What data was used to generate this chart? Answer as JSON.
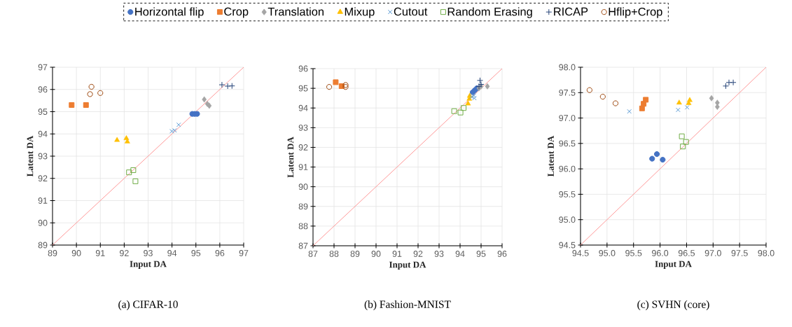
{
  "chart_data": [
    {
      "type": "scatter",
      "title": "(a) CIFAR-10",
      "xlabel": "Input DA",
      "ylabel": "Latent DA",
      "xlim": [
        89,
        97
      ],
      "ylim": [
        89,
        97
      ],
      "xticks": [
        89,
        90,
        91,
        92,
        93,
        94,
        95,
        96,
        97
      ],
      "yticks": [
        89,
        90,
        91,
        92,
        93,
        94,
        95,
        96,
        97
      ],
      "grid": true,
      "legend": "top",
      "series": [
        {
          "type": "line",
          "color": "#ff9999",
          "marker": "none",
          "x": [
            89,
            97
          ],
          "values": [
            89,
            97
          ]
        },
        {
          "name": "Horizontal flip",
          "color": "#4472c4",
          "marker": "circle",
          "x": [
            94.85,
            94.95,
            95.05
          ],
          "values": [
            94.9,
            94.9,
            94.9
          ]
        },
        {
          "name": "Crop",
          "color": "#ed7d31",
          "marker": "square",
          "x": [
            89.8,
            90.4
          ],
          "values": [
            95.3,
            95.3
          ]
        },
        {
          "name": "Translation",
          "color": "#a5a5a5",
          "marker": "diamond",
          "x": [
            95.35,
            95.48,
            95.56
          ],
          "values": [
            95.55,
            95.35,
            95.27
          ]
        },
        {
          "name": "Mixup",
          "color": "#ffc000",
          "marker": "triangle",
          "x": [
            91.7,
            92.09,
            92.13
          ],
          "values": [
            93.72,
            93.8,
            93.65
          ]
        },
        {
          "name": "Cutout",
          "color": "#5b9bd5",
          "marker": "cross",
          "x": [
            93.99,
            94.11,
            94.28
          ],
          "values": [
            94.12,
            94.16,
            94.41
          ]
        },
        {
          "name": "Random Erasing",
          "color": "#70ad47",
          "marker": "square",
          "x": [
            92.2,
            92.38,
            92.47
          ],
          "values": [
            92.27,
            92.37,
            91.87
          ]
        },
        {
          "name": "RICAP",
          "color": "#264478",
          "marker": "cross",
          "x": [
            96.09,
            96.33,
            96.51
          ],
          "values": [
            96.21,
            96.15,
            96.16
          ]
        },
        {
          "name": "Hflip+Crop",
          "color": "#9e480e",
          "marker": "circle",
          "x": [
            90.63,
            90.57,
            91.0
          ],
          "values": [
            96.12,
            95.79,
            95.84
          ]
        }
      ]
    },
    {
      "type": "scatter",
      "title": "(b) Fashion-MNIST",
      "xlabel": "Input DA",
      "ylabel": "Latent DA",
      "xlim": [
        87,
        96
      ],
      "ylim": [
        87,
        96
      ],
      "xticks": [
        87,
        88,
        89,
        90,
        91,
        92,
        93,
        94,
        95,
        96
      ],
      "yticks": [
        87,
        88,
        89,
        90,
        91,
        92,
        93,
        94,
        95,
        96
      ],
      "grid": true,
      "series": [
        {
          "type": "line",
          "color": "#ff9999",
          "marker": "none",
          "x": [
            87,
            96
          ],
          "values": [
            87,
            96
          ]
        },
        {
          "color": "#4472c4",
          "marker": "circle",
          "x": [
            94.6,
            94.7,
            94.8
          ],
          "values": [
            94.8,
            94.9,
            95.0
          ]
        },
        {
          "color": "#ed7d31",
          "marker": "square",
          "x": [
            88.08,
            88.36
          ],
          "values": [
            95.31,
            95.11
          ]
        },
        {
          "color": "#a5a5a5",
          "marker": "diamond",
          "x": [
            94.9,
            95.0,
            95.3
          ],
          "values": [
            95.0,
            95.1,
            95.1
          ]
        },
        {
          "color": "#ffc000",
          "marker": "triangle",
          "x": [
            94.38,
            94.44,
            94.46
          ],
          "values": [
            94.22,
            94.46,
            94.61
          ]
        },
        {
          "color": "#5b9bd5",
          "marker": "cross",
          "x": [
            94.55,
            94.66,
            94.68
          ],
          "values": [
            94.57,
            94.63,
            94.5
          ]
        },
        {
          "color": "#70ad47",
          "marker": "square",
          "x": [
            93.72,
            94.02,
            94.17
          ],
          "values": [
            93.84,
            93.77,
            94.0
          ]
        },
        {
          "color": "#264478",
          "marker": "cross",
          "x": [
            94.95,
            95.0,
            94.9
          ],
          "values": [
            95.4,
            95.2,
            95.1
          ]
        },
        {
          "color": "#9e480e",
          "marker": "circle",
          "x": [
            87.77,
            88.55,
            88.55
          ],
          "values": [
            95.07,
            95.17,
            95.07
          ]
        }
      ]
    },
    {
      "type": "scatter",
      "title": "(c) SVHN (core)",
      "xlabel": "Input DA",
      "ylabel": "Latent DA",
      "xlim": [
        94.5,
        98
      ],
      "ylim": [
        94.5,
        98
      ],
      "xticks": [
        94.5,
        {
          "value": 95,
          "label": "95.0"
        },
        95.5,
        {
          "value": 96,
          "label": "96.0"
        },
        96.5,
        {
          "value": 97,
          "label": "97.0"
        },
        97.5,
        {
          "value": 98,
          "label": "98.0"
        }
      ],
      "yticks": [
        94.5,
        {
          "value": 95,
          "label": "95.0"
        },
        95.5,
        {
          "value": 96,
          "label": "96.0"
        },
        96.5,
        {
          "value": 97,
          "label": "97.0"
        },
        97.5,
        {
          "value": 98,
          "label": "98.0"
        }
      ],
      "grid": true,
      "series": [
        {
          "type": "line",
          "color": "#ff9999",
          "marker": "none",
          "x": [
            94.5,
            98
          ],
          "values": [
            94.5,
            98
          ]
        },
        {
          "color": "#4472c4",
          "marker": "circle",
          "x": [
            95.85,
            95.94,
            96.05
          ],
          "values": [
            96.2,
            96.29,
            96.18
          ]
        },
        {
          "color": "#ed7d31",
          "marker": "square",
          "x": [
            95.66,
            95.69,
            95.73
          ],
          "values": [
            97.19,
            97.28,
            97.36
          ]
        },
        {
          "color": "#a5a5a5",
          "marker": "diamond",
          "x": [
            96.97,
            97.08,
            97.08
          ],
          "values": [
            97.39,
            97.3,
            97.22
          ]
        },
        {
          "color": "#ffc000",
          "marker": "triangle",
          "x": [
            96.36,
            96.54,
            96.56
          ],
          "values": [
            97.3,
            97.29,
            97.35
          ]
        },
        {
          "color": "#5b9bd5",
          "marker": "cross",
          "x": [
            95.42,
            96.34,
            96.51
          ],
          "values": [
            97.13,
            97.16,
            97.21
          ]
        },
        {
          "color": "#70ad47",
          "marker": "square",
          "x": [
            96.41,
            96.49,
            96.43
          ],
          "values": [
            96.64,
            96.53,
            96.44
          ]
        },
        {
          "color": "#264478",
          "marker": "cross",
          "x": [
            97.24,
            97.3,
            97.38
          ],
          "values": [
            97.63,
            97.7,
            97.7
          ]
        },
        {
          "color": "#9e480e",
          "marker": "circle",
          "x": [
            94.67,
            94.92,
            95.16
          ],
          "values": [
            97.55,
            97.42,
            97.29
          ]
        }
      ]
    }
  ]
}
